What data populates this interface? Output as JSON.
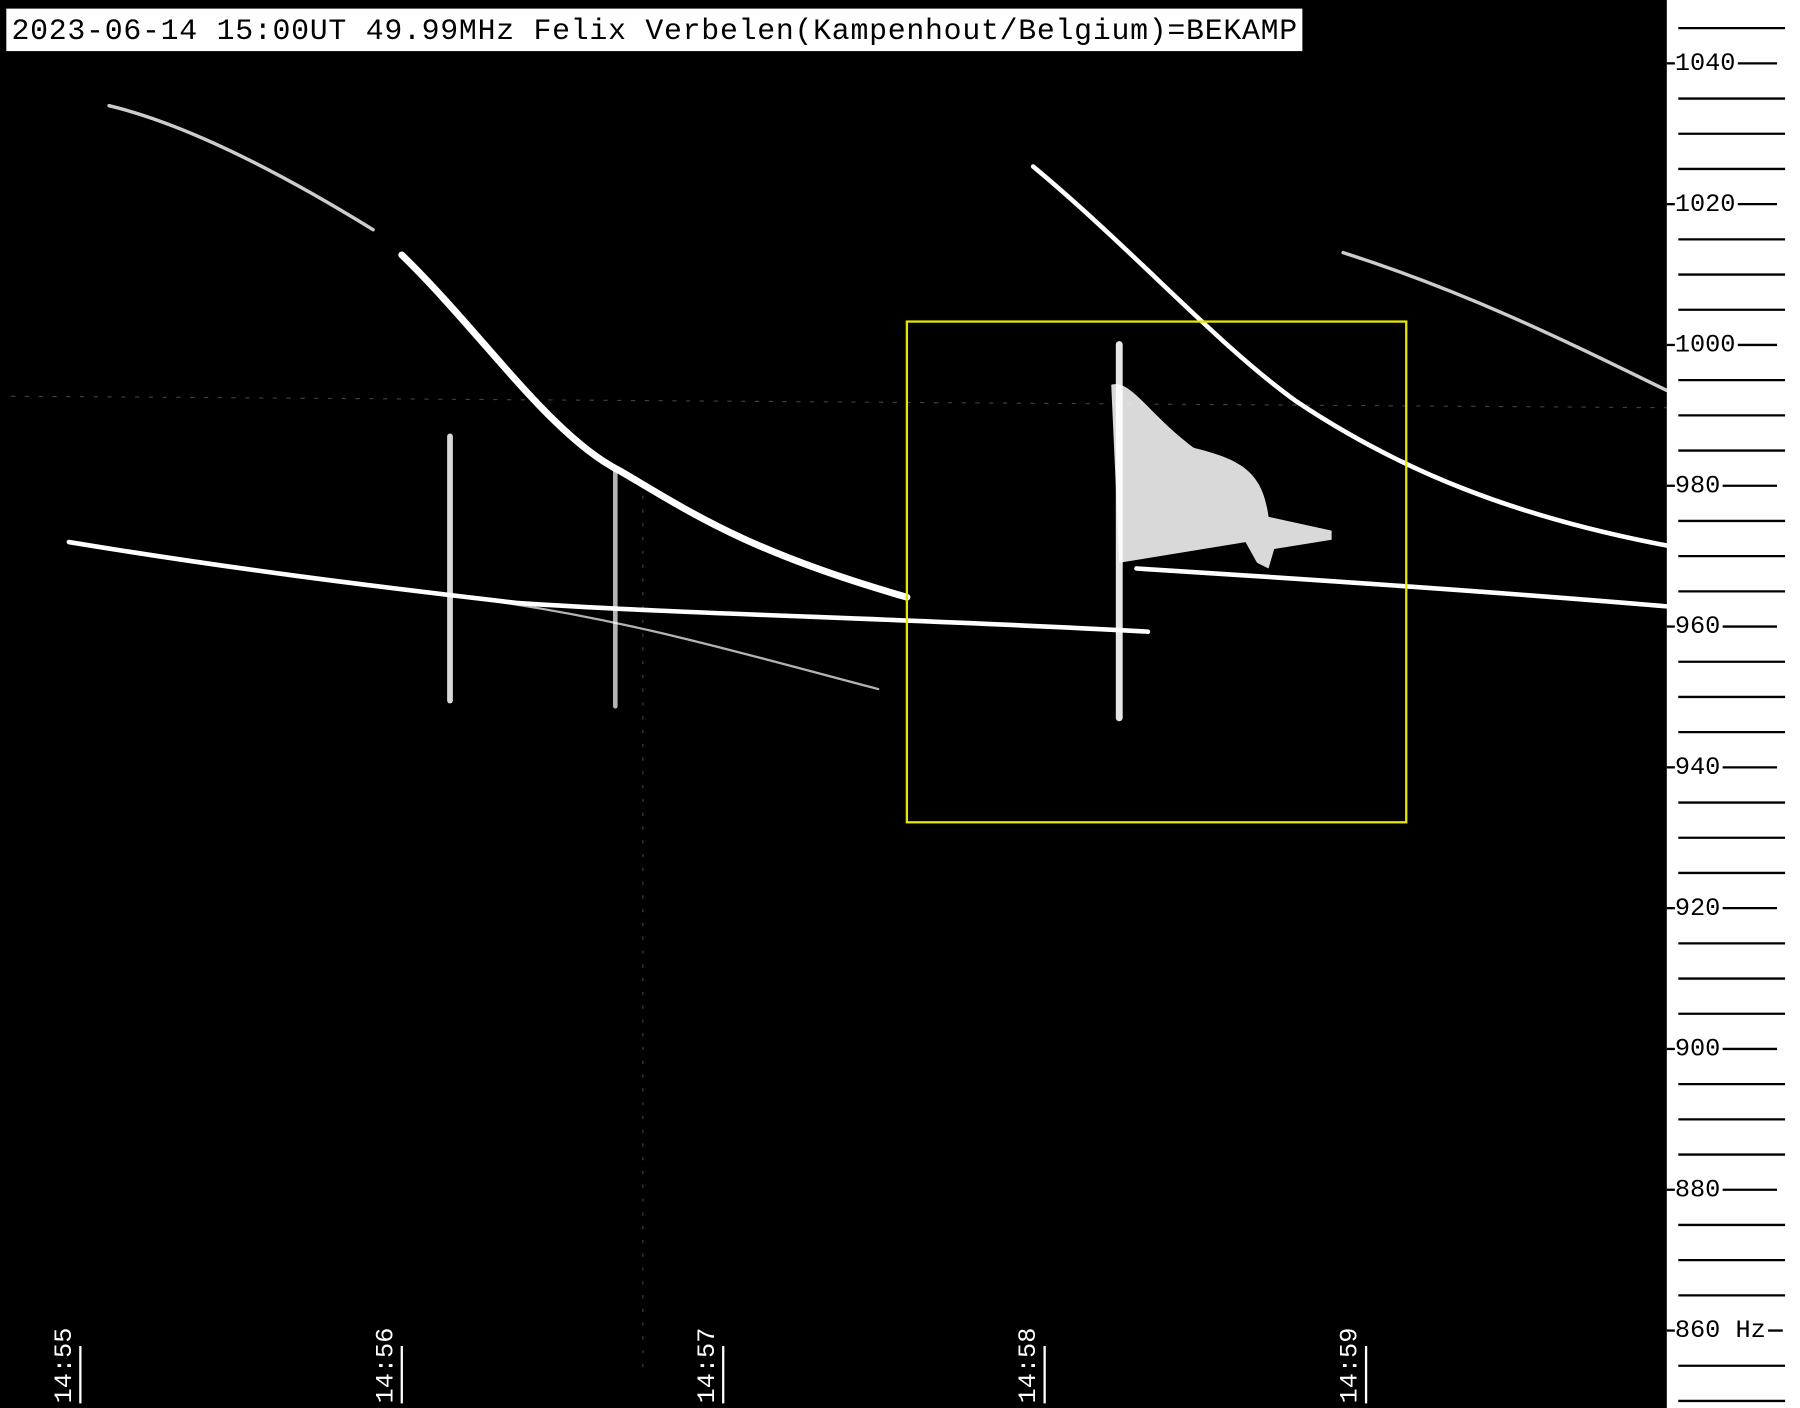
{
  "chart_data": {
    "type": "spectrogram",
    "title": "2023-06-14 15:00UT 49.99MHz Felix Verbelen(Kampenhout/Belgium)=BEKAMP",
    "categories": [
      "14:55",
      "14:56",
      "14:57",
      "14:58",
      "14:59"
    ],
    "ylim": [
      849,
      1049
    ],
    "yticks": [
      1040,
      1020,
      1000,
      980,
      960,
      940,
      920,
      900,
      880,
      {
        "value": 860,
        "label": "860 Hz"
      }
    ],
    "background": "#000000",
    "highlight_color": "#e6e600"
  }
}
